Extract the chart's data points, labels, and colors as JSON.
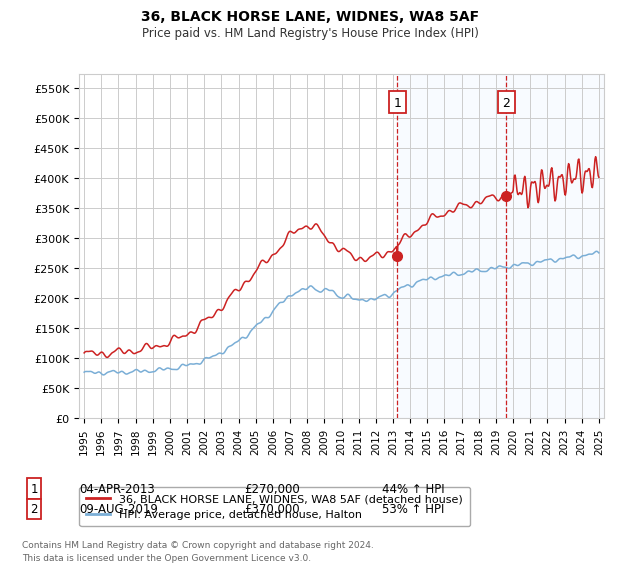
{
  "title": "36, BLACK HORSE LANE, WIDNES, WA8 5AF",
  "subtitle": "Price paid vs. HM Land Registry's House Price Index (HPI)",
  "ylim": [
    0,
    575000
  ],
  "yticks": [
    0,
    50000,
    100000,
    150000,
    200000,
    250000,
    300000,
    350000,
    400000,
    450000,
    500000,
    550000
  ],
  "ytick_labels": [
    "£0",
    "£50K",
    "£100K",
    "£150K",
    "£200K",
    "£250K",
    "£300K",
    "£350K",
    "£400K",
    "£450K",
    "£500K",
    "£550K"
  ],
  "xlim_min": 1994.7,
  "xlim_max": 2025.3,
  "hpi_color": "#7aaed6",
  "price_color": "#cc2222",
  "sale_1_date": 2013.25,
  "sale_1_price": 270000,
  "sale_2_date": 2019.6,
  "sale_2_price": 370000,
  "shaded_color": "#ddeeff",
  "grid_color": "#cccccc",
  "legend_price": "36, BLACK HORSE LANE, WIDNES, WA8 5AF (detached house)",
  "legend_hpi": "HPI: Average price, detached house, Halton",
  "ann_1_date": "04-APR-2013",
  "ann_1_price": "£270,000",
  "ann_1_pct": "44% ↑ HPI",
  "ann_2_date": "09-AUG-2019",
  "ann_2_price": "£370,000",
  "ann_2_pct": "53% ↑ HPI",
  "footer": "Contains HM Land Registry data © Crown copyright and database right 2024.\nThis data is licensed under the Open Government Licence v3.0.",
  "background_color": "#ffffff"
}
